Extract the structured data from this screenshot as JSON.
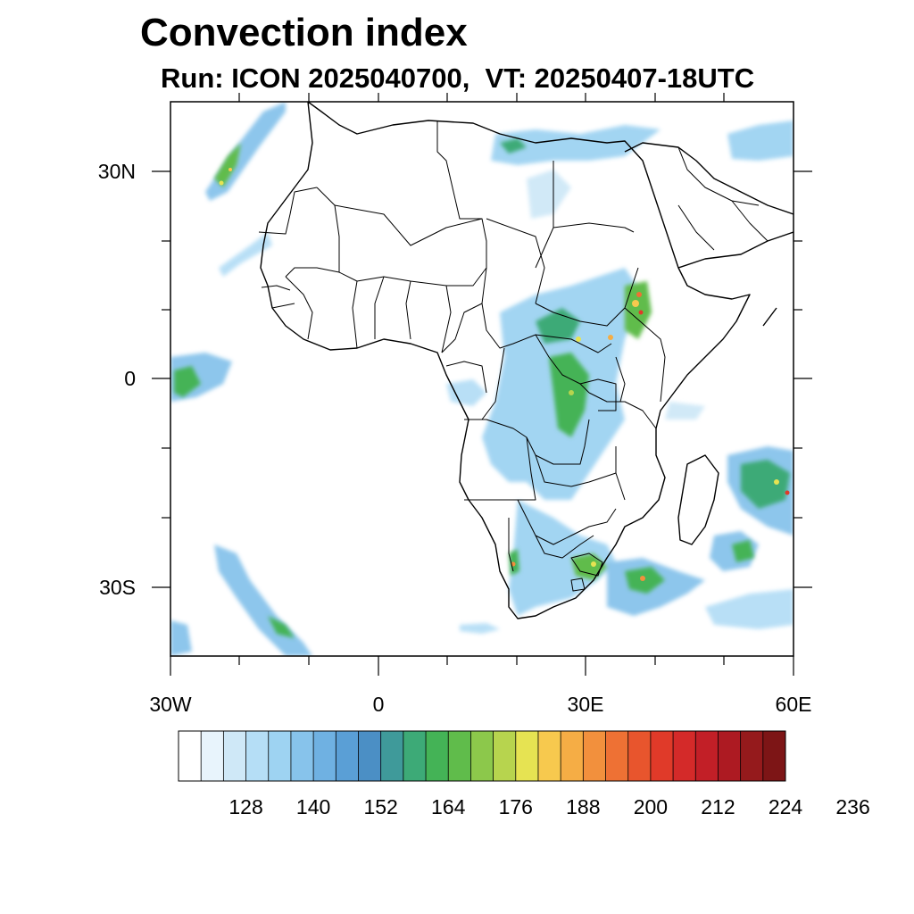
{
  "title": "Convection index",
  "subtitle": "Run: ICON 2025040700,  VT: 20250407-18UTC",
  "map": {
    "projection": "cylindrical equidistant",
    "lon_range": [
      -30,
      60
    ],
    "lat_range": [
      -40,
      40
    ],
    "lon_ticks": [
      "30W",
      "0",
      "30E",
      "60E"
    ],
    "lat_ticks": [
      "30N",
      "0",
      "30S"
    ],
    "boundaries": [
      "coastlines",
      "country borders"
    ]
  },
  "colorbar": {
    "labels": [
      "128",
      "140",
      "152",
      "164",
      "176",
      "188",
      "200",
      "212",
      "224",
      "236"
    ],
    "colors": [
      "#ffffff",
      "#e8f4fc",
      "#cfe8f7",
      "#b5def6",
      "#9ed3f2",
      "#87c3eb",
      "#6fb1e2",
      "#5a9fd6",
      "#4b8fc5",
      "#3f9a9a",
      "#3daa77",
      "#44b356",
      "#60bc4b",
      "#8cc84b",
      "#b7d44e",
      "#e6e352",
      "#f7c94e",
      "#f5ad45",
      "#f2903d",
      "#ee7134",
      "#e8552d",
      "#e03a29",
      "#d42a29",
      "#c21f27",
      "#ad1a22",
      "#951a1c",
      "#7d1516"
    ]
  }
}
